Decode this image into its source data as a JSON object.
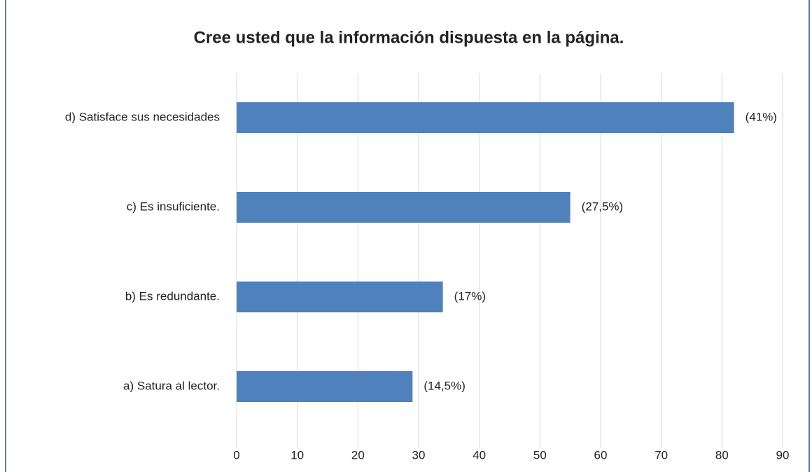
{
  "chart_data": {
    "type": "hbar",
    "title": "Cree usted que la información dispuesta en la página.",
    "categories": [
      "d) Satisface sus necesidades",
      "c) Es insuficiente.",
      "b) Es redundante.",
      "a) Satura al lector."
    ],
    "values": [
      82,
      55,
      34,
      29
    ],
    "annotations": [
      "(41%)",
      "(27,5%)",
      "(17%)",
      "(14,5%)"
    ],
    "color": "#4f81bd",
    "xlim": [
      0,
      90
    ],
    "xticks": [
      0,
      10,
      20,
      30,
      40,
      50,
      60,
      70,
      80,
      90
    ],
    "grid": true
  }
}
